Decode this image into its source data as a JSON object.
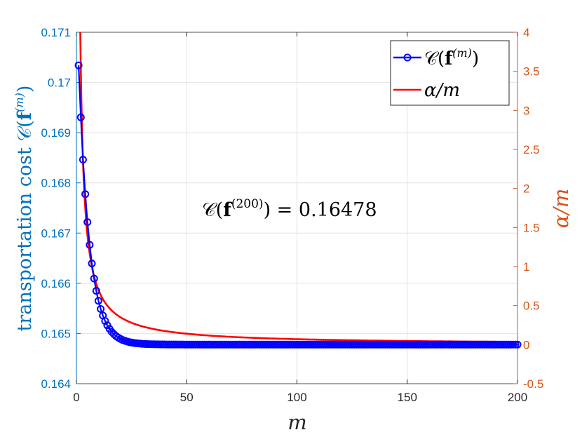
{
  "chart_data": {
    "type": "line",
    "xlabel": "m",
    "ylabel_left": {
      "text": "transportation cost 𝒞(",
      "bold": "f",
      "sup": "(m)",
      "close": ")"
    },
    "ylabel_right": "α/m",
    "xlim": [
      0,
      200
    ],
    "ylim_left": [
      0.164,
      0.171
    ],
    "ylim_right": [
      -0.5,
      4
    ],
    "xticks": [
      "0",
      "50",
      "100",
      "150",
      "200"
    ],
    "yticks_left": [
      "0.164",
      "0.165",
      "0.166",
      "0.167",
      "0.168",
      "0.169",
      "0.17",
      "0.171"
    ],
    "yticks_right": [
      "-0.5",
      "0",
      "0.5",
      "1",
      "1.5",
      "2",
      "2.5",
      "3",
      "3.5",
      "4"
    ],
    "grid": true,
    "legend_position": "top-right",
    "series": [
      {
        "name": "𝒞(f^(m))",
        "axis": "left",
        "color": "#0000FF",
        "marker": "circle",
        "x_range": [
          1,
          200
        ],
        "y_first": 0.17034,
        "y_limit": 0.16478,
        "decay_rate": 0.206,
        "samples": [
          {
            "x": 1,
            "y": 0.17034
          },
          {
            "x": 2,
            "y": 0.16897
          },
          {
            "x": 3,
            "y": 0.1681
          },
          {
            "x": 4,
            "y": 0.16743
          },
          {
            "x": 5,
            "y": 0.16691
          },
          {
            "x": 6,
            "y": 0.1665
          },
          {
            "x": 7,
            "y": 0.16618
          },
          {
            "x": 8,
            "y": 0.16592
          },
          {
            "x": 9,
            "y": 0.16571
          },
          {
            "x": 10,
            "y": 0.16555
          },
          {
            "x": 11,
            "y": 0.16541
          },
          {
            "x": 12,
            "y": 0.1653
          },
          {
            "x": 13,
            "y": 0.1652
          },
          {
            "x": 200,
            "y": 0.16478
          }
        ]
      },
      {
        "name": "α/m",
        "axis": "right",
        "color": "#FF0000",
        "marker": "none",
        "alpha": 7.0,
        "x_range": [
          1.75,
          200
        ]
      }
    ],
    "annotation": {
      "text": "𝒞(",
      "bold": "f",
      "sup": "(200)",
      "close": ") = 0.16478",
      "x": 100,
      "y": 0.16725
    }
  },
  "legend": {
    "entries": [
      {
        "text": "𝒞(",
        "bold": "f",
        "sup": "(m)",
        "close": ")"
      },
      {
        "text": "α/m"
      }
    ]
  }
}
